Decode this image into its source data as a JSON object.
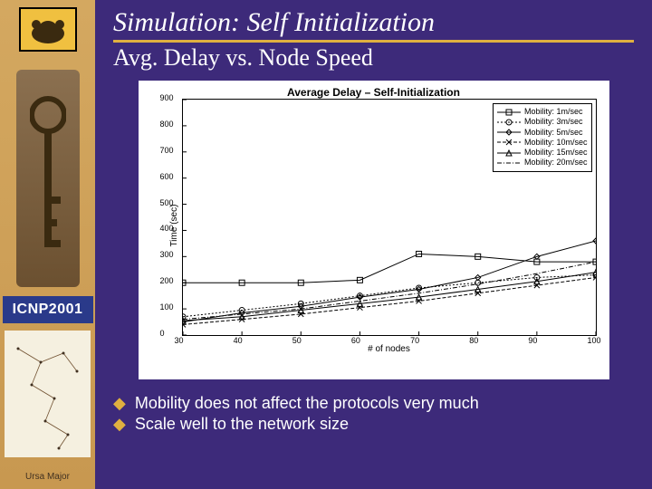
{
  "slide": {
    "title": "Simulation: Self Initialization",
    "subtitle": "Avg. Delay vs. Node Speed",
    "title_color": "#ffffff",
    "underline_color": "#e0b040",
    "background_color": "#3d2a7a"
  },
  "sidebar": {
    "conference_badge": "ICNP2001",
    "footer_label": "Ursa Major",
    "badge_bg": "#2a3a8a"
  },
  "chart": {
    "type": "line",
    "title": "Average Delay – Self-Initialization",
    "xlabel": "# of nodes",
    "ylabel": "Time (sec)",
    "xlim": [
      30,
      100
    ],
    "ylim": [
      0,
      900
    ],
    "xtick_step": 10,
    "ytick_step": 100,
    "xticks": [
      30,
      40,
      50,
      60,
      70,
      80,
      90,
      100
    ],
    "yticks": [
      0,
      100,
      200,
      300,
      400,
      500,
      600,
      700,
      800,
      900
    ],
    "background_color": "#ffffff",
    "axis_color": "#000000",
    "line_width": 1,
    "title_fontsize": 12,
    "label_fontsize": 10,
    "tick_fontsize": 9,
    "legend_fontsize": 9,
    "legend_position": "upper-right",
    "series": [
      {
        "label": "Mobility: 1m/sec",
        "marker": "square",
        "dash": "none",
        "color": "#000000",
        "x": [
          30,
          40,
          50,
          60,
          70,
          80,
          90,
          100
        ],
        "y": [
          200,
          200,
          200,
          210,
          310,
          300,
          280,
          280
        ]
      },
      {
        "label": "Mobility: 3m/sec",
        "marker": "circle",
        "dash": "2,2",
        "color": "#000000",
        "x": [
          30,
          40,
          50,
          60,
          70,
          80,
          90,
          100
        ],
        "y": [
          70,
          95,
          120,
          150,
          180,
          200,
          220,
          230
        ]
      },
      {
        "label": "Mobility: 5m/sec",
        "marker": "diamond",
        "dash": "none",
        "color": "#000000",
        "x": [
          30,
          40,
          50,
          60,
          70,
          80,
          90,
          100
        ],
        "y": [
          50,
          85,
          110,
          145,
          175,
          220,
          300,
          360
        ]
      },
      {
        "label": "Mobility: 10m/sec",
        "marker": "x",
        "dash": "4,2",
        "color": "#000000",
        "x": [
          30,
          40,
          50,
          60,
          70,
          80,
          90,
          100
        ],
        "y": [
          40,
          60,
          80,
          105,
          130,
          160,
          190,
          220
        ]
      },
      {
        "label": "Mobility: 15m/sec",
        "marker": "triangle",
        "dash": "none",
        "color": "#000000",
        "x": [
          30,
          40,
          50,
          60,
          70,
          80,
          90,
          100
        ],
        "y": [
          55,
          70,
          95,
          120,
          145,
          175,
          205,
          240
        ]
      },
      {
        "label": "Mobility: 20m/sec",
        "marker": "none",
        "dash": "5,2,1,2",
        "color": "#000000",
        "x": [
          30,
          40,
          50,
          60,
          70,
          80,
          90,
          100
        ],
        "y": [
          60,
          80,
          100,
          130,
          160,
          195,
          235,
          280
        ]
      }
    ]
  },
  "bullets": [
    "Mobility does not affect the protocols very much",
    "Scale well to the network size"
  ]
}
